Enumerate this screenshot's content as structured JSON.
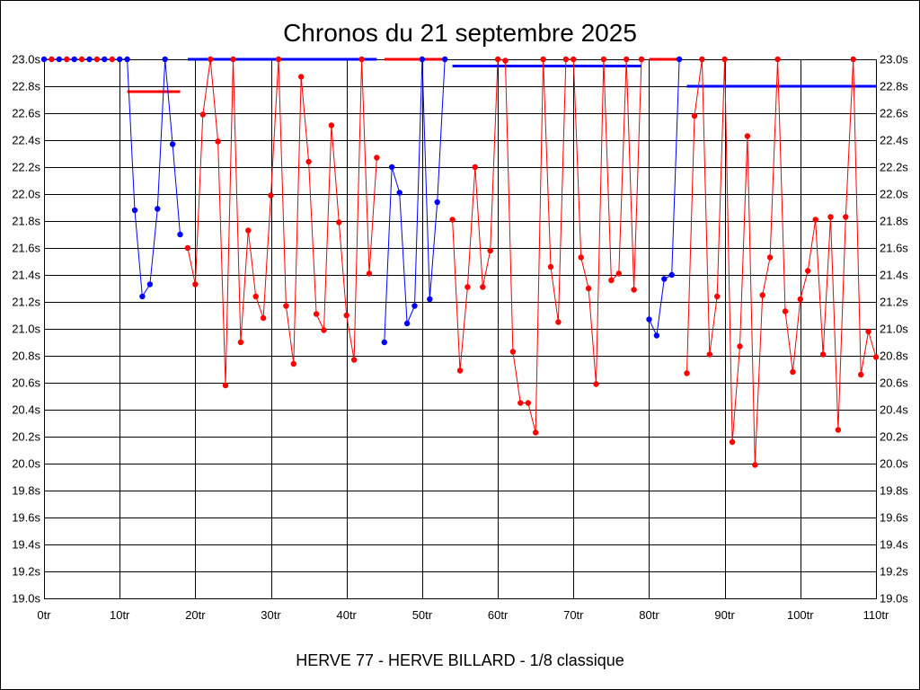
{
  "chart_data": {
    "type": "line",
    "title": "Chronos du 21 septembre 2025",
    "caption": "HERVE 77 - HERVE BILLARD - 1/8 classique",
    "xlim": [
      0,
      110
    ],
    "ylim": [
      19.0,
      23.0
    ],
    "grid": true,
    "x_ticks": [
      0,
      10,
      20,
      30,
      40,
      50,
      60,
      70,
      80,
      90,
      100,
      110
    ],
    "x_tick_labels": [
      "0tr",
      "10tr",
      "20tr",
      "30tr",
      "40tr",
      "50tr",
      "60tr",
      "70tr",
      "80tr",
      "90tr",
      "100tr",
      "110tr"
    ],
    "y_ticks": [
      23.0,
      22.8,
      22.6,
      22.4,
      22.2,
      22.0,
      21.8,
      21.6,
      21.4,
      21.2,
      21.0,
      20.8,
      20.6,
      20.4,
      20.2,
      20.0,
      19.8,
      19.6,
      19.4,
      19.2,
      19.0
    ],
    "y_tick_labels": [
      "23.0s",
      "22.8s",
      "22.6s",
      "22.4s",
      "22.2s",
      "22.0s",
      "21.8s",
      "21.6s",
      "21.4s",
      "21.2s",
      "21.0s",
      "20.8s",
      "20.6s",
      "20.4s",
      "20.2s",
      "20.0s",
      "19.8s",
      "19.6s",
      "19.4s",
      "19.2s",
      "19.0s"
    ],
    "series": [
      {
        "color": "#0000ff",
        "point_colors": [
          "#0000ff",
          "#ff0000",
          "#0000ff",
          "#ff0000",
          "#0000ff",
          "#ff0000",
          "#0000ff",
          "#ff0000",
          "#0000ff",
          "#ff0000",
          "#0000ff",
          "#0000ff",
          "#0000ff",
          "#0000ff",
          "#0000ff",
          "#0000ff",
          "#0000ff",
          "#0000ff",
          "#0000ff"
        ],
        "points": [
          [
            0,
            23.0
          ],
          [
            1,
            23.0
          ],
          [
            2,
            23.0
          ],
          [
            3,
            23.0
          ],
          [
            4,
            23.0
          ],
          [
            5,
            23.0
          ],
          [
            6,
            23.0
          ],
          [
            7,
            23.0
          ],
          [
            8,
            23.0
          ],
          [
            9,
            23.0
          ],
          [
            10,
            23.0
          ],
          [
            11,
            23.0
          ],
          [
            12,
            21.88
          ],
          [
            13,
            21.24
          ],
          [
            14,
            21.33
          ],
          [
            15,
            21.89
          ],
          [
            16,
            23.0
          ],
          [
            17,
            22.37
          ],
          [
            18,
            21.7
          ]
        ]
      },
      {
        "color": "#ff0000",
        "points": [
          [
            19,
            21.6
          ],
          [
            20,
            21.33
          ],
          [
            21,
            22.59
          ],
          [
            22,
            23.0
          ],
          [
            23,
            22.39
          ],
          [
            24,
            20.58
          ],
          [
            25,
            23.0
          ],
          [
            26,
            20.9
          ],
          [
            27,
            21.73
          ],
          [
            28,
            21.24
          ],
          [
            29,
            21.08
          ],
          [
            30,
            21.99
          ],
          [
            31,
            23.0
          ],
          [
            32,
            21.17
          ],
          [
            33,
            20.74
          ],
          [
            34,
            22.87
          ],
          [
            35,
            22.24
          ],
          [
            36,
            21.11
          ],
          [
            37,
            20.99
          ],
          [
            38,
            22.51
          ],
          [
            39,
            21.79
          ],
          [
            40,
            21.1
          ],
          [
            41,
            20.77
          ],
          [
            42,
            23.0
          ],
          [
            43,
            21.41
          ],
          [
            44,
            22.27
          ]
        ]
      },
      {
        "color": "#0000ff",
        "points": [
          [
            45,
            20.9
          ],
          [
            46,
            22.2
          ],
          [
            47,
            22.01
          ],
          [
            48,
            21.04
          ],
          [
            49,
            21.17
          ],
          [
            50,
            23.0
          ],
          [
            51,
            21.22
          ],
          [
            52,
            21.94
          ],
          [
            53,
            23.0
          ]
        ]
      },
      {
        "color": "#ff0000",
        "points": [
          [
            54,
            21.81
          ],
          [
            55,
            20.69
          ],
          [
            56,
            21.31
          ],
          [
            57,
            22.2
          ],
          [
            58,
            21.31
          ],
          [
            59,
            21.58
          ],
          [
            60,
            23.0
          ],
          [
            61,
            22.99
          ],
          [
            62,
            20.83
          ],
          [
            63,
            20.45
          ],
          [
            64,
            20.45
          ],
          [
            65,
            20.23
          ],
          [
            66,
            23.0
          ],
          [
            67,
            21.46
          ],
          [
            68,
            21.05
          ],
          [
            69,
            23.0
          ],
          [
            70,
            23.0
          ],
          [
            71,
            21.53
          ],
          [
            72,
            21.3
          ],
          [
            73,
            20.59
          ],
          [
            74,
            23.0
          ],
          [
            75,
            21.36
          ],
          [
            76,
            21.41
          ],
          [
            77,
            23.0
          ],
          [
            78,
            21.29
          ],
          [
            79,
            23.0
          ]
        ]
      },
      {
        "color": "#0000ff",
        "points": [
          [
            80,
            21.07
          ],
          [
            81,
            20.95
          ],
          [
            82,
            21.37
          ],
          [
            83,
            21.4
          ],
          [
            84,
            23.0
          ]
        ]
      },
      {
        "color": "#ff0000",
        "points": [
          [
            85,
            20.67
          ],
          [
            86,
            22.58
          ],
          [
            87,
            23.0
          ],
          [
            88,
            20.81
          ],
          [
            89,
            21.24
          ],
          [
            90,
            23.0
          ],
          [
            91,
            20.16
          ],
          [
            92,
            20.87
          ],
          [
            93,
            22.43
          ],
          [
            94,
            19.99
          ],
          [
            95,
            21.25
          ],
          [
            96,
            21.53
          ],
          [
            97,
            23.0
          ],
          [
            98,
            21.13
          ],
          [
            99,
            20.68
          ],
          [
            100,
            21.22
          ],
          [
            101,
            21.43
          ],
          [
            102,
            21.81
          ],
          [
            103,
            20.81
          ],
          [
            104,
            21.83
          ],
          [
            105,
            20.25
          ],
          [
            106,
            21.83
          ],
          [
            107,
            23.0
          ],
          [
            108,
            20.66
          ],
          [
            109,
            20.98
          ],
          [
            110,
            20.79
          ]
        ]
      }
    ],
    "reference_lines": [
      {
        "color": "#ff0000",
        "y": 22.76,
        "x": [
          11,
          18
        ]
      },
      {
        "color": "#0000ff",
        "y": 23.0,
        "x": [
          19,
          44
        ]
      },
      {
        "color": "#ff0000",
        "y": 23.0,
        "x": [
          45,
          53
        ]
      },
      {
        "color": "#0000ff",
        "y": 22.95,
        "x": [
          54,
          79
        ]
      },
      {
        "color": "#ff0000",
        "y": 23.0,
        "x": [
          80,
          84
        ]
      },
      {
        "color": "#0000ff",
        "y": 22.8,
        "x": [
          85,
          110
        ]
      }
    ]
  }
}
